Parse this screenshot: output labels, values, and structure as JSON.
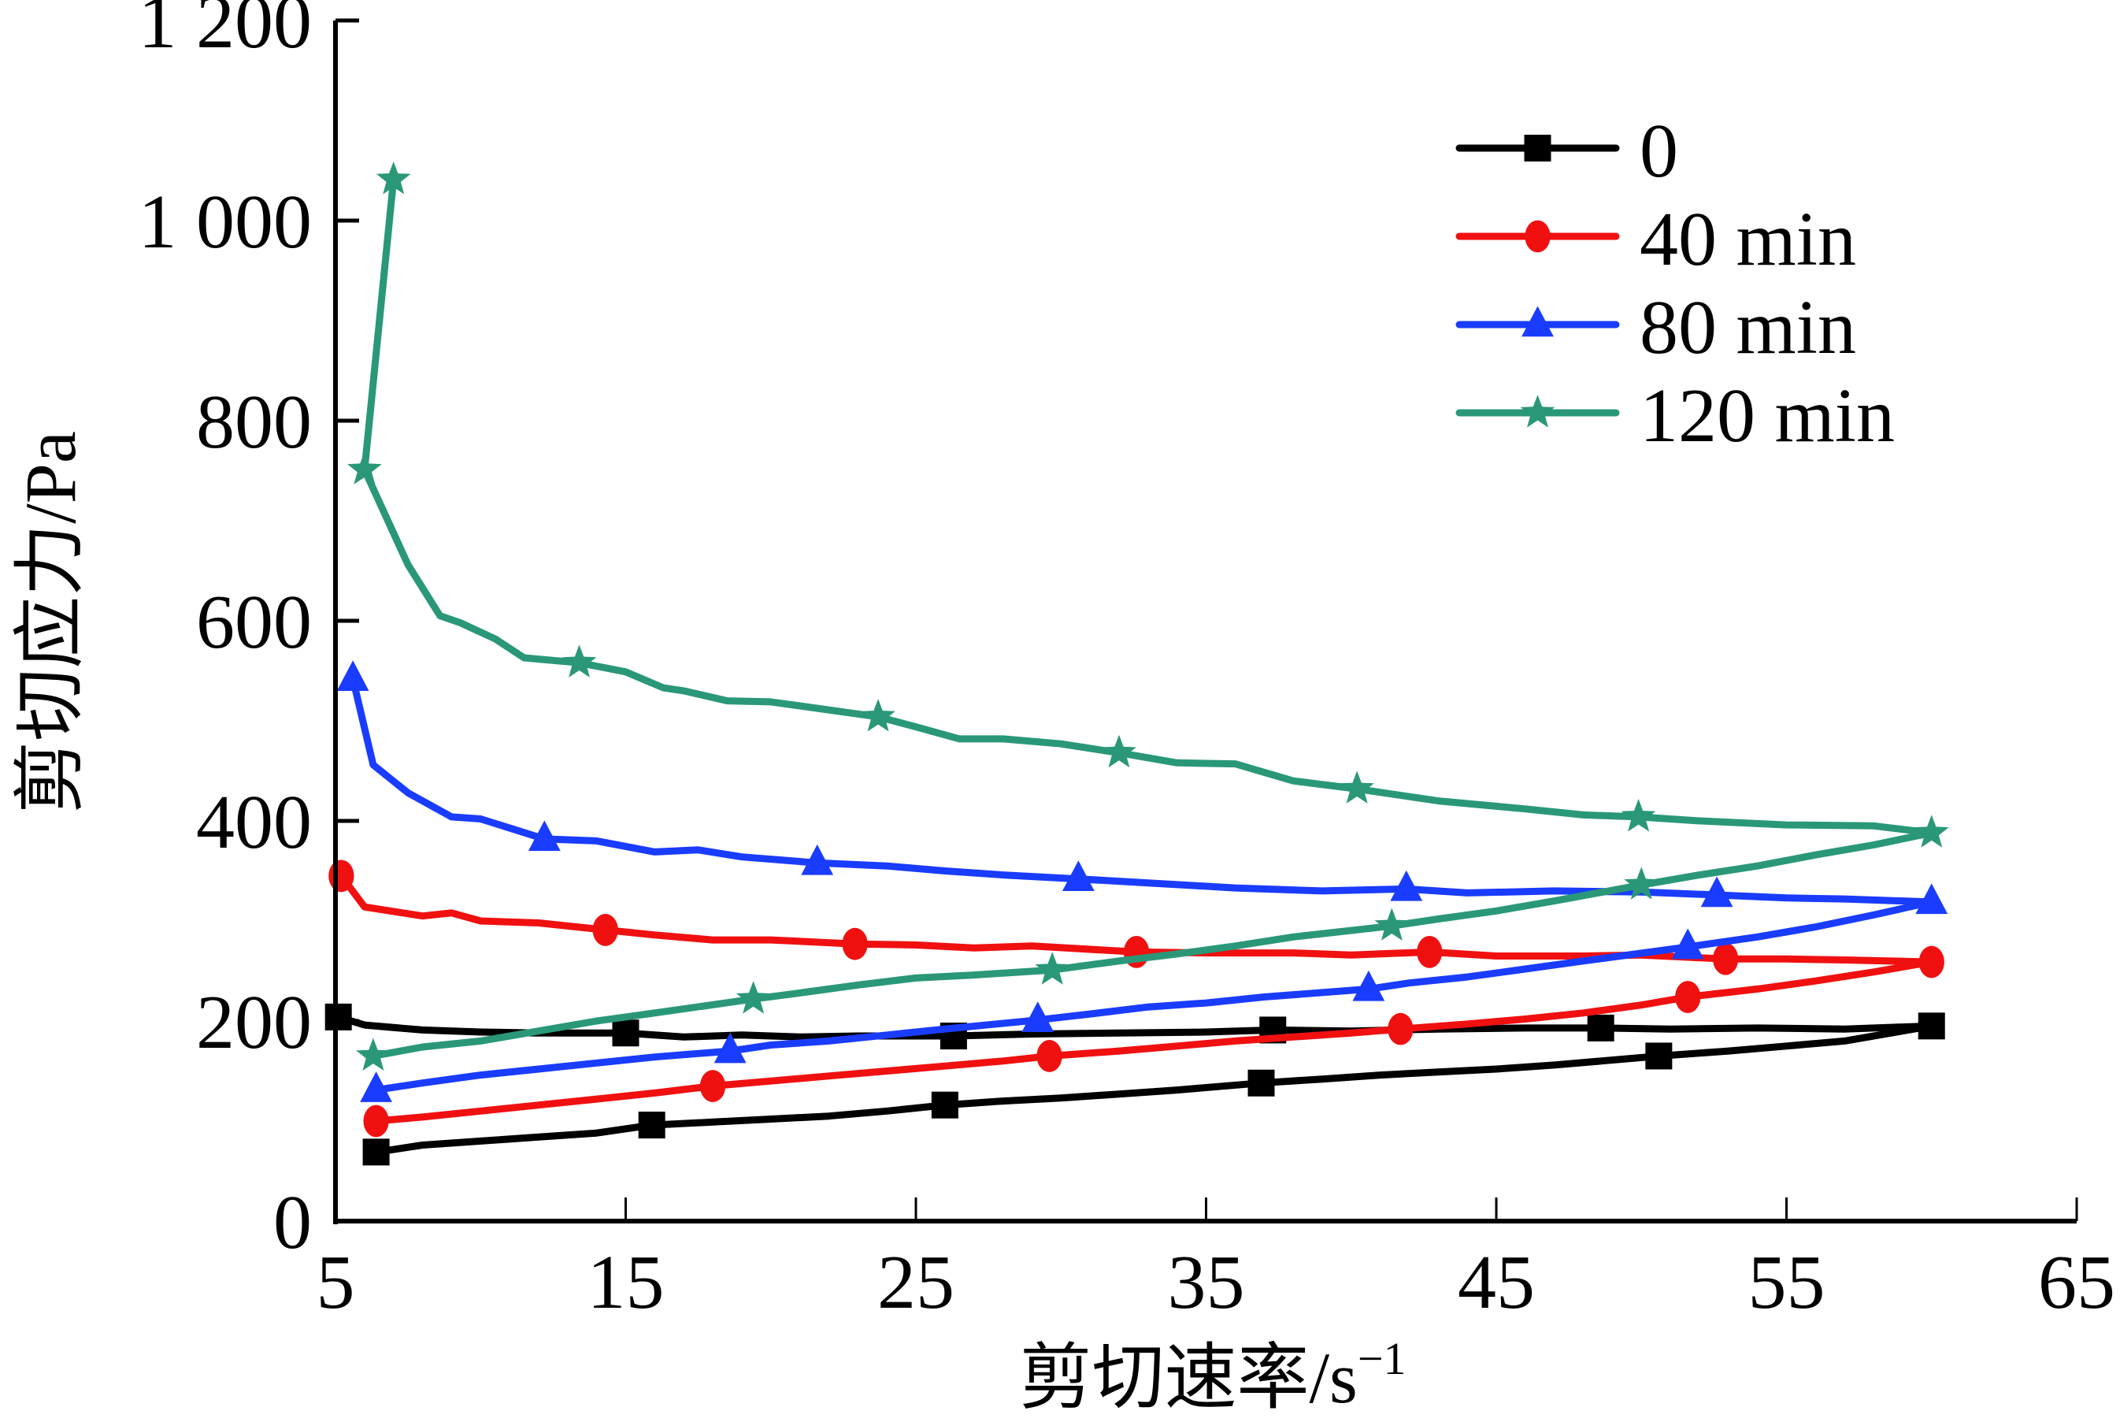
{
  "chart_data": {
    "type": "line",
    "title": "",
    "xlabel": "剪切速率/s",
    "xlabel_superscript": "−1",
    "ylabel": "剪切应力/Pa",
    "xlim": [
      5,
      65
    ],
    "ylim": [
      0,
      1200
    ],
    "x_ticks": [
      5,
      15,
      25,
      35,
      45,
      55,
      65
    ],
    "x_tick_labels": [
      "5",
      "15",
      "25",
      "35",
      "45",
      "55",
      "65"
    ],
    "y_ticks": [
      0,
      200,
      400,
      600,
      800,
      1000,
      1200
    ],
    "y_tick_labels": [
      "0",
      "200",
      "400",
      "600",
      "800",
      "1 000",
      "1 200"
    ],
    "grid": false,
    "legend_position": "top-right",
    "series": [
      {
        "name": "0",
        "color": "#000000",
        "marker": "square",
        "up_curve": {
          "x": [
            6.4,
            8,
            10,
            12,
            14,
            15.9,
            18,
            20,
            22,
            24,
            26,
            28,
            30,
            32,
            34,
            36.9,
            39,
            41,
            43,
            45,
            47,
            50.6,
            53,
            55,
            57,
            60
          ],
          "y": [
            69,
            76,
            80,
            84,
            88,
            96,
            99,
            102,
            105,
            110,
            116,
            120,
            123,
            127,
            131,
            138,
            142,
            146,
            149,
            152,
            156,
            165,
            170,
            175,
            180,
            195
          ]
        },
        "down_curve": {
          "x": [
            5.1,
            6,
            8,
            10,
            12,
            15,
            17,
            19,
            21,
            23,
            26.3,
            29,
            32,
            35,
            37.3,
            40,
            43,
            46,
            48.6,
            51,
            54,
            57,
            60
          ],
          "y": [
            204,
            196,
            191,
            189,
            188,
            188,
            184,
            186,
            184,
            185,
            185,
            187,
            188,
            189,
            191,
            190,
            192,
            193,
            193,
            192,
            193,
            192,
            195
          ]
        },
        "markers": {
          "up": [
            [
              6.4,
              69
            ],
            [
              15.9,
              96
            ],
            [
              26,
              116
            ],
            [
              36.9,
              138
            ],
            [
              50.6,
              165
            ],
            [
              60,
              195
            ]
          ],
          "down": [
            [
              5.1,
              204
            ],
            [
              15,
              188
            ],
            [
              26.3,
              185
            ],
            [
              37.3,
              191
            ],
            [
              48.6,
              193
            ]
          ]
        }
      },
      {
        "name": "40 min",
        "color": "#f01010",
        "marker": "circle",
        "up_curve": {
          "x": [
            6.4,
            8,
            10,
            12,
            14,
            16,
            18,
            20,
            22,
            24,
            26,
            28,
            29.6,
            32,
            34,
            36,
            38,
            40,
            41.7,
            44,
            46,
            48,
            50,
            51.6,
            54,
            56,
            58,
            60
          ],
          "y": [
            100,
            104,
            110,
            116,
            122,
            128,
            135,
            140,
            145,
            150,
            155,
            160,
            165,
            170,
            175,
            180,
            184,
            188,
            192,
            197,
            202,
            208,
            216,
            224,
            232,
            240,
            249,
            259
          ]
        },
        "down_curve": {
          "x": [
            5.2,
            6,
            8,
            9,
            10,
            12,
            14.3,
            16,
            18,
            20,
            22.9,
            25,
            27,
            29,
            32.6,
            35,
            38,
            40,
            42.7,
            45,
            48,
            50,
            52.9,
            55,
            57,
            60
          ],
          "y": [
            345,
            314,
            305,
            308,
            300,
            298,
            291,
            286,
            281,
            281,
            277,
            276,
            273,
            275,
            269,
            268,
            268,
            266,
            269,
            265,
            265,
            266,
            262,
            262,
            261,
            259
          ]
        },
        "markers": {
          "up": [
            [
              6.4,
              100
            ],
            [
              18,
              135
            ],
            [
              29.6,
              165
            ],
            [
              41.7,
              192
            ],
            [
              51.6,
              224
            ],
            [
              60,
              259
            ]
          ],
          "down": [
            [
              5.2,
              345
            ],
            [
              14.3,
              291
            ],
            [
              22.9,
              277
            ],
            [
              32.6,
              269
            ],
            [
              42.7,
              269
            ],
            [
              52.9,
              262
            ]
          ]
        }
      },
      {
        "name": "80 min",
        "color": "#1a3cff",
        "marker": "triangle",
        "up_curve": {
          "x": [
            6.4,
            8,
            10,
            12,
            14,
            16,
            18.6,
            20,
            22,
            24,
            26,
            29.2,
            31,
            33,
            35,
            37,
            40.6,
            42,
            44,
            46,
            48,
            51.6,
            54,
            56,
            58,
            60
          ],
          "y": [
            131,
            138,
            146,
            152,
            158,
            164,
            170,
            176,
            180,
            186,
            192,
            201,
            207,
            214,
            218,
            224,
            232,
            238,
            244,
            252,
            260,
            274,
            284,
            294,
            306,
            319
          ]
        },
        "down_curve": {
          "x": [
            5.6,
            6.3,
            7.5,
            9,
            10,
            12.2,
            14,
            16,
            17.5,
            19,
            21.6,
            24,
            26,
            28,
            30.6,
            33,
            36,
            39,
            41.9,
            44,
            47,
            50,
            52.6,
            55,
            57,
            60
          ],
          "y": [
            542,
            456,
            428,
            404,
            402,
            382,
            380,
            369,
            371,
            364,
            358,
            355,
            350,
            346,
            342,
            338,
            333,
            330,
            332,
            328,
            330,
            329,
            326,
            323,
            322,
            319
          ]
        },
        "markers": {
          "up": [
            [
              6.4,
              131
            ],
            [
              18.6,
              170
            ],
            [
              29.2,
              201
            ],
            [
              40.6,
              232
            ],
            [
              51.6,
              274
            ],
            [
              60,
              319
            ]
          ],
          "down": [
            [
              5.6,
              542
            ],
            [
              12.2,
              382
            ],
            [
              21.6,
              358
            ],
            [
              30.6,
              342
            ],
            [
              41.9,
              332
            ],
            [
              52.6,
              326
            ]
          ]
        }
      },
      {
        "name": "120 min",
        "color": "#2a9878",
        "marker": "star",
        "up_curve": {
          "x": [
            6.3,
            8,
            10,
            12,
            14,
            16,
            19.4,
            21,
            23,
            25,
            27,
            29.7,
            32,
            34,
            36,
            38,
            41.4,
            43,
            45,
            47,
            50,
            52,
            54,
            56,
            58,
            60
          ],
          "y": [
            165,
            174,
            180,
            190,
            200,
            208,
            222,
            228,
            236,
            243,
            246,
            251,
            260,
            267,
            275,
            284,
            295,
            302,
            310,
            320,
            336,
            346,
            355,
            366,
            376,
            388
          ]
        },
        "down_curve": {
          "x": [
            7,
            6,
            7.5,
            8.6,
            9.3,
            10.5,
            11.5,
            13.4,
            15,
            16.3,
            17,
            18.5,
            20,
            21,
            23.7,
            25,
            26.5,
            28,
            30,
            32,
            34,
            36,
            38,
            40.2,
            43,
            46,
            48,
            49.9,
            52,
            55,
            58,
            60
          ],
          "y": [
            1041,
            751,
            656,
            605,
            598,
            582,
            563,
            558,
            549,
            533,
            530,
            520,
            519,
            515,
            504,
            494,
            482,
            482,
            477,
            468,
            458,
            457,
            440,
            432,
            420,
            412,
            406,
            404,
            400,
            396,
            395,
            388
          ]
        },
        "markers": {
          "up": [
            [
              6.3,
              165
            ],
            [
              19.4,
              222
            ],
            [
              29.7,
              251
            ],
            [
              41.4,
              295
            ],
            [
              50,
              336
            ],
            [
              60,
              388
            ]
          ],
          "down": [
            [
              7,
              1041
            ],
            [
              6,
              751
            ],
            [
              13.4,
              558
            ],
            [
              23.7,
              504
            ],
            [
              32,
              468
            ],
            [
              40.2,
              432
            ],
            [
              49.9,
              404
            ]
          ]
        }
      }
    ]
  }
}
